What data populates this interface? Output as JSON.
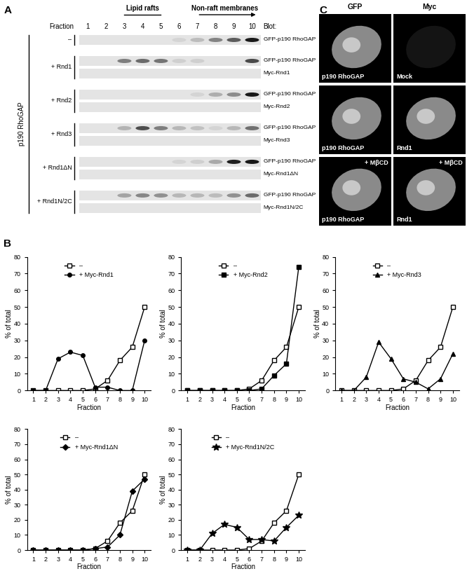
{
  "panel_labels": [
    "A",
    "B",
    "C"
  ],
  "blot": {
    "header": {
      "lipid_rafts": "Lipid rafts",
      "non_raft": "Non-raft membranes",
      "fraction_label": "Fraction",
      "fractions": [
        1,
        2,
        3,
        4,
        5,
        6,
        7,
        8,
        9,
        10
      ],
      "blot_label": "Blot:"
    },
    "side_label": "p190 RhoGAP",
    "groups": [
      {
        "condition": "–",
        "rows": [
          "GFP-p190 RhoGAP"
        ]
      },
      {
        "condition": "+ Rnd1",
        "rows": [
          "GFP-p190 RhoGAP",
          "Myc-Rnd1"
        ]
      },
      {
        "condition": "+ Rnd2",
        "rows": [
          "GFP-p190 RhoGAP",
          "Myc-Rnd2"
        ]
      },
      {
        "condition": "+ Rnd3",
        "rows": [
          "GFP-p190 RhoGAP",
          "Myc-Rnd3"
        ]
      },
      {
        "condition": "+ Rnd1ΔN",
        "rows": [
          "GFP-p190 RhoGAP",
          "Myc-Rnd1ΔN"
        ]
      },
      {
        "condition": "+ Rnd1N/2C",
        "rows": [
          "GFP-p190 RhoGAP",
          "Myc-Rnd1N/2C"
        ]
      }
    ]
  },
  "chart_data": [
    {
      "type": "line",
      "x": [
        1,
        2,
        3,
        4,
        5,
        6,
        7,
        8,
        9,
        10
      ],
      "xlim": [
        0.5,
        10.5
      ],
      "xticks": [
        1,
        2,
        3,
        4,
        5,
        6,
        7,
        8,
        9,
        10
      ],
      "ylim": [
        0,
        80
      ],
      "yticks": [
        0,
        10,
        20,
        30,
        40,
        50,
        60,
        70,
        80
      ],
      "x_label": "Fraction",
      "y_label": "% of total",
      "legend": "upper center",
      "series": [
        {
          "name": "–",
          "color": "#000000",
          "marker": "square_open",
          "values": [
            0,
            0,
            0,
            0,
            0,
            1,
            6,
            18,
            26,
            50
          ]
        },
        {
          "name": "+ Myc-Rnd1",
          "color": "#000000",
          "marker": "circle",
          "values": [
            0,
            0,
            19,
            23,
            21,
            2,
            2,
            0,
            0,
            30
          ]
        }
      ]
    },
    {
      "type": "line",
      "x": [
        1,
        2,
        3,
        4,
        5,
        6,
        7,
        8,
        9,
        10
      ],
      "xlim": [
        0.5,
        10.5
      ],
      "xticks": [
        1,
        2,
        3,
        4,
        5,
        6,
        7,
        8,
        9,
        10
      ],
      "ylim": [
        0,
        80
      ],
      "yticks": [
        0,
        10,
        20,
        30,
        40,
        50,
        60,
        70,
        80
      ],
      "x_label": "Fraction",
      "y_label": "% of total",
      "legend": "upper center",
      "series": [
        {
          "name": "–",
          "color": "#000000",
          "marker": "square_open",
          "values": [
            0,
            0,
            0,
            0,
            0,
            1,
            6,
            18,
            26,
            50
          ]
        },
        {
          "name": "+ Myc-Rnd2",
          "color": "#000000",
          "marker": "square",
          "values": [
            0,
            0,
            0,
            0,
            0,
            0,
            1,
            9,
            16,
            74
          ]
        }
      ]
    },
    {
      "type": "line",
      "x": [
        1,
        2,
        3,
        4,
        5,
        6,
        7,
        8,
        9,
        10
      ],
      "xlim": [
        0.5,
        10.5
      ],
      "xticks": [
        1,
        2,
        3,
        4,
        5,
        6,
        7,
        8,
        9,
        10
      ],
      "ylim": [
        0,
        80
      ],
      "yticks": [
        0,
        10,
        20,
        30,
        40,
        50,
        60,
        70,
        80
      ],
      "x_label": "Fraction",
      "y_label": "% of total",
      "legend": "upper center",
      "series": [
        {
          "name": "–",
          "color": "#000000",
          "marker": "square_open",
          "values": [
            0,
            0,
            0,
            0,
            0,
            1,
            6,
            18,
            26,
            50
          ]
        },
        {
          "name": "+ Myc-Rnd3",
          "color": "#000000",
          "marker": "triangle",
          "values": [
            0,
            0,
            8,
            29,
            19,
            7,
            5,
            1,
            7,
            22
          ]
        }
      ]
    },
    {
      "type": "line",
      "x": [
        1,
        2,
        3,
        4,
        5,
        6,
        7,
        8,
        9,
        10
      ],
      "xlim": [
        0.5,
        10.5
      ],
      "xticks": [
        1,
        2,
        3,
        4,
        5,
        6,
        7,
        8,
        9,
        10
      ],
      "ylim": [
        0,
        80
      ],
      "yticks": [
        0,
        10,
        20,
        30,
        40,
        50,
        60,
        70,
        80
      ],
      "x_label": "Fraction",
      "y_label": "% of total",
      "legend": "upper center",
      "series": [
        {
          "name": "–",
          "color": "#000000",
          "marker": "square_open",
          "values": [
            0,
            0,
            0,
            0,
            0,
            1,
            6,
            18,
            26,
            50
          ]
        },
        {
          "name": "+ Myc-Rnd1ΔN",
          "color": "#000000",
          "marker": "diamond",
          "values": [
            0,
            0,
            0,
            0,
            0,
            1,
            2,
            10,
            39,
            47
          ]
        }
      ]
    },
    {
      "type": "line",
      "x": [
        1,
        2,
        3,
        4,
        5,
        6,
        7,
        8,
        9,
        10
      ],
      "xlim": [
        0.5,
        10.5
      ],
      "xticks": [
        1,
        2,
        3,
        4,
        5,
        6,
        7,
        8,
        9,
        10
      ],
      "ylim": [
        0,
        80
      ],
      "yticks": [
        0,
        10,
        20,
        30,
        40,
        50,
        60,
        70,
        80
      ],
      "x_label": "Fraction",
      "y_label": "% of total",
      "legend": "upper center",
      "series": [
        {
          "name": "–",
          "color": "#000000",
          "marker": "square_open",
          "values": [
            0,
            0,
            0,
            0,
            0,
            1,
            6,
            18,
            26,
            50
          ]
        },
        {
          "name": "+ Myc-Rnd1N/2C",
          "color": "#000000",
          "marker": "star",
          "values": [
            0,
            0,
            11,
            17,
            15,
            7,
            7,
            6,
            15,
            23
          ]
        }
      ]
    }
  ],
  "images": {
    "column_headers": [
      "GFP",
      "Myc"
    ],
    "rows": [
      {
        "left": "p190 RhoGAP",
        "right": "Mock"
      },
      {
        "left": "p190 RhoGAP",
        "right": "Rnd1"
      },
      {
        "left": "p190 RhoGAP",
        "right": "Rnd1",
        "treatment": "+ MβCD"
      }
    ]
  }
}
